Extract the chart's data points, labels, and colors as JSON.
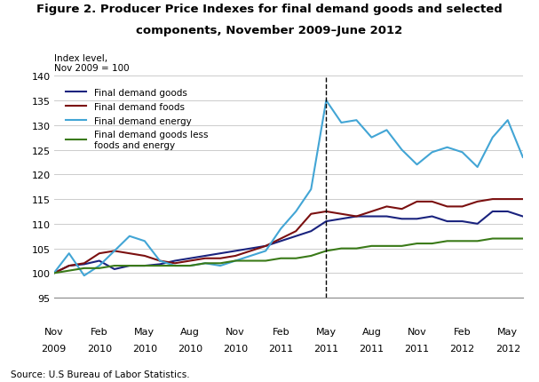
{
  "title_line1": "Figure 2. Producer Price Indexes for final demand goods and selected",
  "title_line2": "components, November 2009–June 2012",
  "ylabel_line1": "Index level,",
  "ylabel_line2": "Nov 2009 = 100",
  "source": "Source: U.S Bureau of Labor Statistics.",
  "ylim": [
    95,
    140
  ],
  "yticks": [
    95,
    100,
    105,
    110,
    115,
    120,
    125,
    130,
    135,
    140
  ],
  "dashed_line_x": 18,
  "legend_labels": [
    "Final demand goods",
    "Final demand foods",
    "Final demand energy",
    "Final demand goods less\nfoods and energy"
  ],
  "colors": {
    "final_demand_goods": "#1a237e",
    "final_demand_foods": "#7b1010",
    "final_demand_energy": "#42a5d5",
    "final_demand_goods_less": "#3a7a18"
  },
  "xtick_labels": [
    [
      "Nov",
      "2009"
    ],
    [
      "Feb",
      "2010"
    ],
    [
      "May",
      "2010"
    ],
    [
      "Aug",
      "2010"
    ],
    [
      "Nov",
      "2010"
    ],
    [
      "Feb",
      "2011"
    ],
    [
      "May",
      "2011"
    ],
    [
      "Aug",
      "2011"
    ],
    [
      "Nov",
      "2011"
    ],
    [
      "Feb",
      "2012"
    ],
    [
      "May",
      "2012"
    ]
  ],
  "xtick_positions": [
    0,
    3,
    6,
    9,
    12,
    15,
    18,
    21,
    24,
    27,
    30
  ],
  "final_demand_goods": [
    100.0,
    101.5,
    101.8,
    102.5,
    100.8,
    101.5,
    101.5,
    101.8,
    102.5,
    103.0,
    103.5,
    104.0,
    104.5,
    105.0,
    105.5,
    106.5,
    107.5,
    108.5,
    110.5,
    111.0,
    111.5,
    111.5,
    111.5,
    111.0,
    111.0,
    111.5,
    110.5,
    110.5,
    110.0,
    112.5,
    112.5,
    111.5
  ],
  "final_demand_foods": [
    100.0,
    101.5,
    102.0,
    104.0,
    104.5,
    104.0,
    103.5,
    102.5,
    102.0,
    102.5,
    103.0,
    103.0,
    103.5,
    104.5,
    105.5,
    107.0,
    108.5,
    112.0,
    112.5,
    112.0,
    111.5,
    112.5,
    113.5,
    113.0,
    114.5,
    114.5,
    113.5,
    113.5,
    114.5,
    115.0,
    115.0,
    115.0
  ],
  "final_demand_energy": [
    100.0,
    104.0,
    99.5,
    101.5,
    104.5,
    107.5,
    106.5,
    102.5,
    101.5,
    101.5,
    102.0,
    101.5,
    102.5,
    103.5,
    104.5,
    109.0,
    112.5,
    117.0,
    135.0,
    130.5,
    131.0,
    127.5,
    129.0,
    125.0,
    122.0,
    124.5,
    125.5,
    124.5,
    121.5,
    127.5,
    131.0,
    123.5
  ],
  "final_demand_goods_less": [
    100.0,
    100.5,
    101.0,
    101.0,
    101.5,
    101.5,
    101.5,
    101.5,
    101.5,
    101.5,
    102.0,
    102.0,
    102.5,
    102.5,
    102.5,
    103.0,
    103.0,
    103.5,
    104.5,
    105.0,
    105.0,
    105.5,
    105.5,
    105.5,
    106.0,
    106.0,
    106.5,
    106.5,
    106.5,
    107.0,
    107.0,
    107.0
  ]
}
